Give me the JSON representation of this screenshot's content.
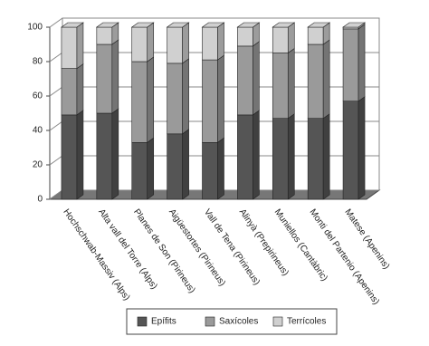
{
  "chart_data": {
    "type": "stacked-bar-3d",
    "categories": [
      "Hochschwab-Massiv (Alps)",
      "Alta vall del Torre (Alps)",
      "Planes de Son (Pirineus)",
      "Aigüestortes (Pirineus)",
      "Vall de Tena (Pirineus)",
      "Alinyà (Prepirineus)",
      "Muniellos (Cantàbric)",
      "Monti del Partenio (Apenins)",
      "Matese (Apenins)"
    ],
    "series": [
      {
        "name": "Epífits",
        "color": "#555555",
        "values": [
          49,
          50,
          33,
          38,
          33,
          49,
          47,
          47,
          57
        ]
      },
      {
        "name": "Saxícoles",
        "color": "#9a9a9a",
        "values": [
          27,
          40,
          47,
          41,
          48,
          40,
          38,
          43,
          42
        ]
      },
      {
        "name": "Terrícoles",
        "color": "#d0d0d0",
        "values": [
          24,
          10,
          20,
          21,
          19,
          11,
          15,
          10,
          1
        ]
      }
    ],
    "ylim": [
      0,
      100
    ],
    "yticks": [
      0,
      20,
      40,
      60,
      80,
      100
    ],
    "grid": true
  }
}
